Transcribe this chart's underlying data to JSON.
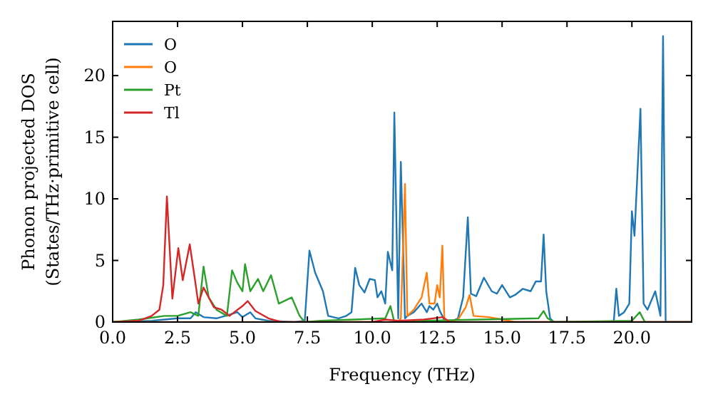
{
  "chart_data": {
    "type": "line",
    "xlabel": "Frequency (THz)",
    "ylabel": "Phonon projected DOS\n(States/THz·primitive cell)",
    "xlim": [
      0,
      22.3
    ],
    "ylim": [
      0,
      24.4
    ],
    "xticks": [
      {
        "value": 0,
        "label": "0.0"
      },
      {
        "value": 2.5,
        "label": "2.5"
      },
      {
        "value": 5,
        "label": "5.0"
      },
      {
        "value": 7.5,
        "label": "7.5"
      },
      {
        "value": 10,
        "label": "10.0"
      },
      {
        "value": 12.5,
        "label": "12.5"
      },
      {
        "value": 15,
        "label": "15.0"
      },
      {
        "value": 17.5,
        "label": "17.5"
      },
      {
        "value": 20,
        "label": "20.0"
      }
    ],
    "yticks": [
      0,
      5,
      10,
      15,
      20
    ],
    "legend": "top left",
    "grid": false,
    "series": [
      {
        "name": "O",
        "color": "#1f77b4",
        "x": [
          0,
          1.5,
          2.5,
          3.0,
          3.2,
          3.5,
          4.0,
          4.5,
          4.8,
          5.0,
          5.3,
          5.5,
          6.0,
          7.0,
          7.4,
          7.58,
          7.8,
          8.1,
          8.3,
          8.7,
          9.0,
          9.2,
          9.34,
          9.5,
          9.7,
          9.9,
          10.1,
          10.2,
          10.35,
          10.5,
          10.6,
          10.77,
          10.85,
          11.0,
          11.1,
          11.26,
          11.35,
          11.6,
          11.9,
          12.1,
          12.2,
          12.35,
          12.5,
          12.6,
          12.7,
          12.8,
          13.0,
          13.3,
          13.5,
          13.68,
          13.8,
          14.0,
          14.3,
          14.6,
          14.8,
          15.0,
          15.3,
          15.5,
          15.8,
          16.1,
          16.3,
          16.5,
          16.6,
          16.7,
          16.85,
          17.0,
          17.2,
          19.3,
          19.4,
          19.5,
          19.7,
          19.9,
          20.0,
          20.1,
          20.33,
          20.45,
          20.6,
          20.9,
          21.0,
          21.1,
          21.2,
          21.3,
          22.3
        ],
        "values": [
          0,
          0.1,
          0.3,
          0.3,
          0.8,
          0.4,
          0.3,
          0.6,
          0.8,
          0.4,
          0.8,
          0.3,
          0.1,
          0,
          0.1,
          5.8,
          4,
          2.5,
          0.5,
          0.3,
          0.5,
          0.8,
          4.4,
          3,
          2.4,
          3.5,
          3.4,
          2,
          2.5,
          1.5,
          5.7,
          4.2,
          17,
          0.3,
          13,
          0.3,
          0.5,
          0.8,
          1.5,
          0.8,
          1.3,
          1,
          1.5,
          0.9,
          0.5,
          0,
          0,
          0.3,
          2,
          8.5,
          2.3,
          2.1,
          3.6,
          2.5,
          2.3,
          3,
          2,
          2.2,
          2.7,
          2.5,
          3.3,
          3.3,
          7.1,
          2.5,
          0.3,
          0,
          0,
          0,
          2.7,
          0.5,
          0.8,
          1.5,
          9,
          7,
          17.3,
          1.5,
          1,
          2.5,
          1.5,
          0.5,
          23.2,
          0,
          0
        ]
      },
      {
        "name": "O",
        "color": "#ff7f0e",
        "x": [
          0,
          11.0,
          11.1,
          11.26,
          11.35,
          11.6,
          11.9,
          12.1,
          12.2,
          12.4,
          12.5,
          12.6,
          12.7,
          12.78,
          13.3,
          13.6,
          13.75,
          13.9,
          14.5,
          15.0,
          15.5,
          22.3
        ],
        "values": [
          0,
          0,
          0.3,
          11.2,
          0.5,
          1,
          2,
          4,
          1.5,
          1.5,
          3,
          2,
          6.2,
          0,
          0.2,
          1.2,
          2.2,
          0.5,
          0.4,
          0.2,
          0,
          0
        ]
      },
      {
        "name": "Pt",
        "color": "#2ca02c",
        "x": [
          0,
          1,
          2,
          2.5,
          3,
          3.3,
          3.5,
          3.7,
          4,
          4.4,
          4.6,
          4.8,
          5,
          5.1,
          5.3,
          5.6,
          5.8,
          6.1,
          6.4,
          6.9,
          7.2,
          7.4,
          8,
          10.5,
          10.7,
          10.85,
          12,
          16.4,
          16.6,
          16.75,
          17,
          20,
          20.3,
          20.5,
          22.3
        ],
        "values": [
          0,
          0.2,
          0.5,
          0.5,
          0.8,
          0.5,
          4.5,
          2,
          1,
          0.5,
          4.2,
          3.2,
          2.5,
          4.7,
          2.5,
          3.5,
          2.5,
          3.8,
          1.5,
          2,
          0.5,
          0,
          0.1,
          0.3,
          1.3,
          0,
          0.1,
          0.3,
          0.9,
          0.3,
          0,
          0.1,
          0.8,
          0,
          0
        ]
      },
      {
        "name": "Tl",
        "color": "#d62728",
        "x": [
          0,
          1,
          1.5,
          1.8,
          1.95,
          2.09,
          2.3,
          2.53,
          2.7,
          2.97,
          3.2,
          3.3,
          3.5,
          3.9,
          4.2,
          4.5,
          5.0,
          5.2,
          5.5,
          6,
          6.5,
          10,
          10.5,
          11,
          12,
          12.7,
          13,
          22.3
        ],
        "values": [
          0,
          0.1,
          0.5,
          1,
          3,
          10.2,
          1.9,
          6,
          3.4,
          6.3,
          3,
          1.5,
          2.8,
          1.2,
          1,
          0.5,
          1.3,
          1.7,
          0.9,
          0.3,
          0,
          0,
          0.2,
          0.1,
          0.2,
          0.4,
          0,
          0
        ]
      }
    ]
  }
}
